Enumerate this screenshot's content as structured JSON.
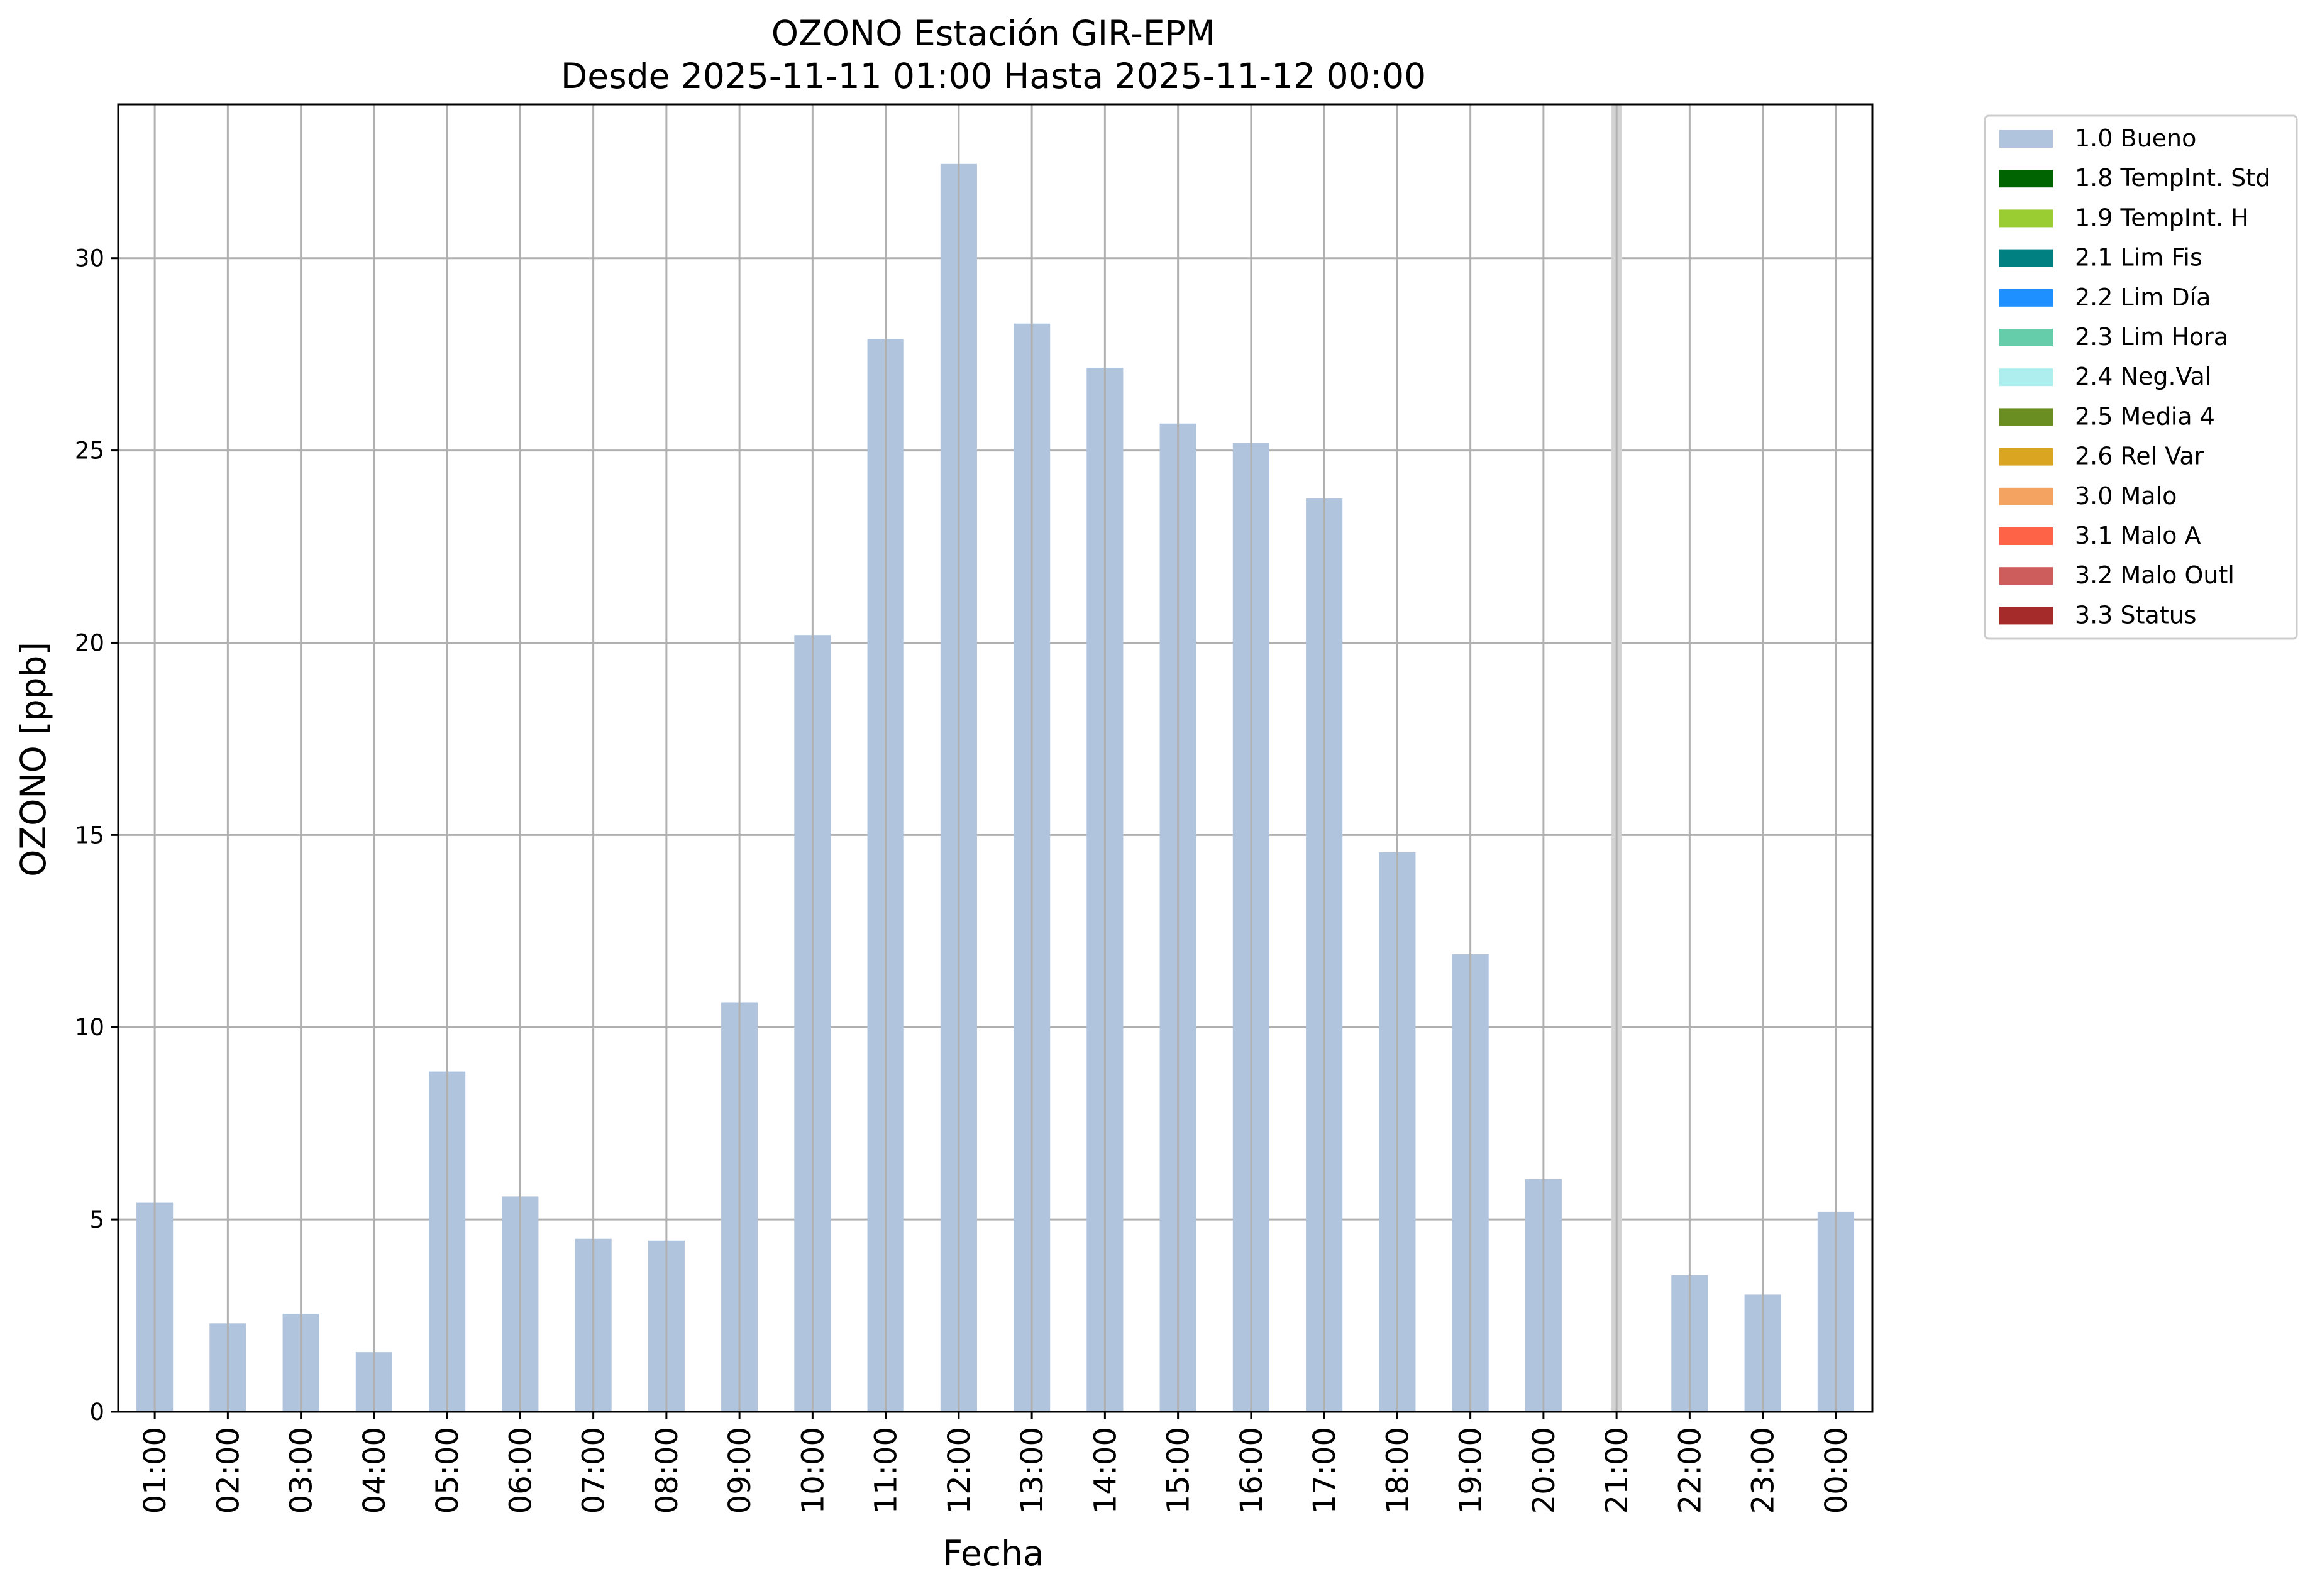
{
  "chart_data": {
    "type": "bar",
    "title": "OZONO Estación GIR-EPM",
    "subtitle": "Desde 2025-11-11 01:00 Hasta 2025-11-12 00:00",
    "xlabel": "Fecha",
    "ylabel": "OZONO [ppb]",
    "ylim": [
      0,
      34
    ],
    "yticks": [
      0,
      5,
      10,
      15,
      20,
      25,
      30
    ],
    "grid": true,
    "legend_position": "outside-top-right",
    "categories": [
      "01:00",
      "02:00",
      "03:00",
      "04:00",
      "05:00",
      "06:00",
      "07:00",
      "08:00",
      "09:00",
      "10:00",
      "11:00",
      "12:00",
      "13:00",
      "14:00",
      "15:00",
      "16:00",
      "17:00",
      "18:00",
      "19:00",
      "20:00",
      "21:00",
      "22:00",
      "23:00",
      "00:00"
    ],
    "series": [
      {
        "name": "1.0 Bueno",
        "color": "#b0c4de",
        "values": [
          5.45,
          2.3,
          2.55,
          1.55,
          8.85,
          5.6,
          4.5,
          4.45,
          10.65,
          20.2,
          27.9,
          32.45,
          28.3,
          27.15,
          25.7,
          25.2,
          23.75,
          14.55,
          11.9,
          6.05,
          null,
          3.55,
          3.05,
          5.2
        ]
      }
    ],
    "missing_marker_category": "21:00",
    "missing_marker_color": "#d3d3d3",
    "legend": [
      {
        "label": "1.0 Bueno",
        "color": "#b0c4de"
      },
      {
        "label": "1.8 TempInt. Std",
        "color": "#006400"
      },
      {
        "label": "1.9 TempInt. H",
        "color": "#9acd32"
      },
      {
        "label": "2.1 Lim Fis",
        "color": "#008080"
      },
      {
        "label": "2.2 Lim Día",
        "color": "#1e90ff"
      },
      {
        "label": "2.3 Lim Hora",
        "color": "#66cdaa"
      },
      {
        "label": "2.4 Neg.Val",
        "color": "#afeeee"
      },
      {
        "label": "2.5 Media 4",
        "color": "#6b8e23"
      },
      {
        "label": "2.6 Rel Var",
        "color": "#daa520"
      },
      {
        "label": "3.0 Malo",
        "color": "#f4a460"
      },
      {
        "label": "3.1 Malo A",
        "color": "#ff6347"
      },
      {
        "label": "3.2 Malo Outl",
        "color": "#cd5c5c"
      },
      {
        "label": "3.3 Status",
        "color": "#a52a2a"
      }
    ]
  }
}
